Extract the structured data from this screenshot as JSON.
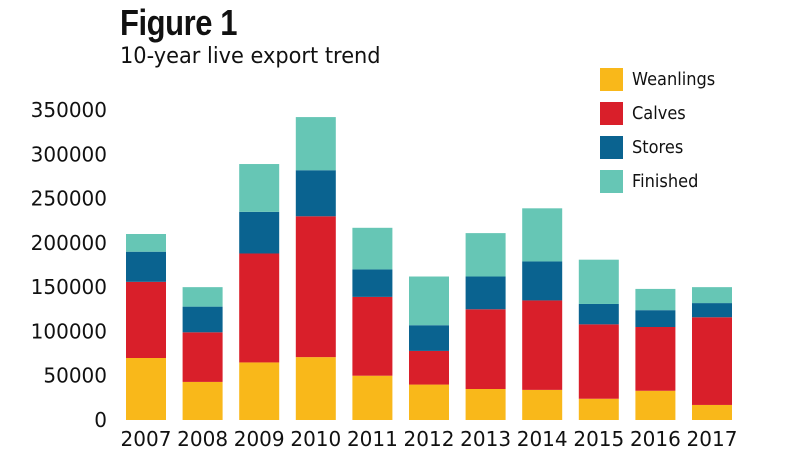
{
  "figure": {
    "title": "Figure 1",
    "subtitle": "10-year live export trend"
  },
  "chart_data": {
    "type": "bar",
    "stacked": true,
    "title": "Figure 1",
    "subtitle": "10-year live export trend",
    "xlabel": "",
    "ylabel": "",
    "ylim": [
      0,
      350000
    ],
    "yticks": [
      0,
      50000,
      100000,
      150000,
      200000,
      250000,
      300000,
      350000
    ],
    "ytick_labels": [
      "0",
      "50000",
      "100000",
      "150000",
      "200000",
      "250000",
      "300000",
      "350000"
    ],
    "grid": false,
    "legend_position": "top-right",
    "categories": [
      "2007",
      "2008",
      "2009",
      "2010",
      "2011",
      "2012",
      "2013",
      "2014",
      "2015",
      "2016",
      "2017"
    ],
    "series": [
      {
        "name": "Weanlings",
        "color": "#f9b81a",
        "values": [
          70000,
          43000,
          65000,
          71000,
          50000,
          40000,
          35000,
          34000,
          24000,
          33000,
          17000
        ]
      },
      {
        "name": "Calves",
        "color": "#d91f2a",
        "values": [
          86000,
          56000,
          123000,
          159000,
          89000,
          38000,
          90000,
          101000,
          84000,
          72000,
          99000
        ]
      },
      {
        "name": "Stores",
        "color": "#0a6390",
        "values": [
          34000,
          29000,
          47000,
          52000,
          31000,
          29000,
          37000,
          44000,
          23000,
          19000,
          16000
        ]
      },
      {
        "name": "Finished",
        "color": "#66c6b5",
        "values": [
          20000,
          22000,
          54000,
          60000,
          47000,
          55000,
          49000,
          60000,
          50000,
          24000,
          18000
        ]
      }
    ]
  }
}
